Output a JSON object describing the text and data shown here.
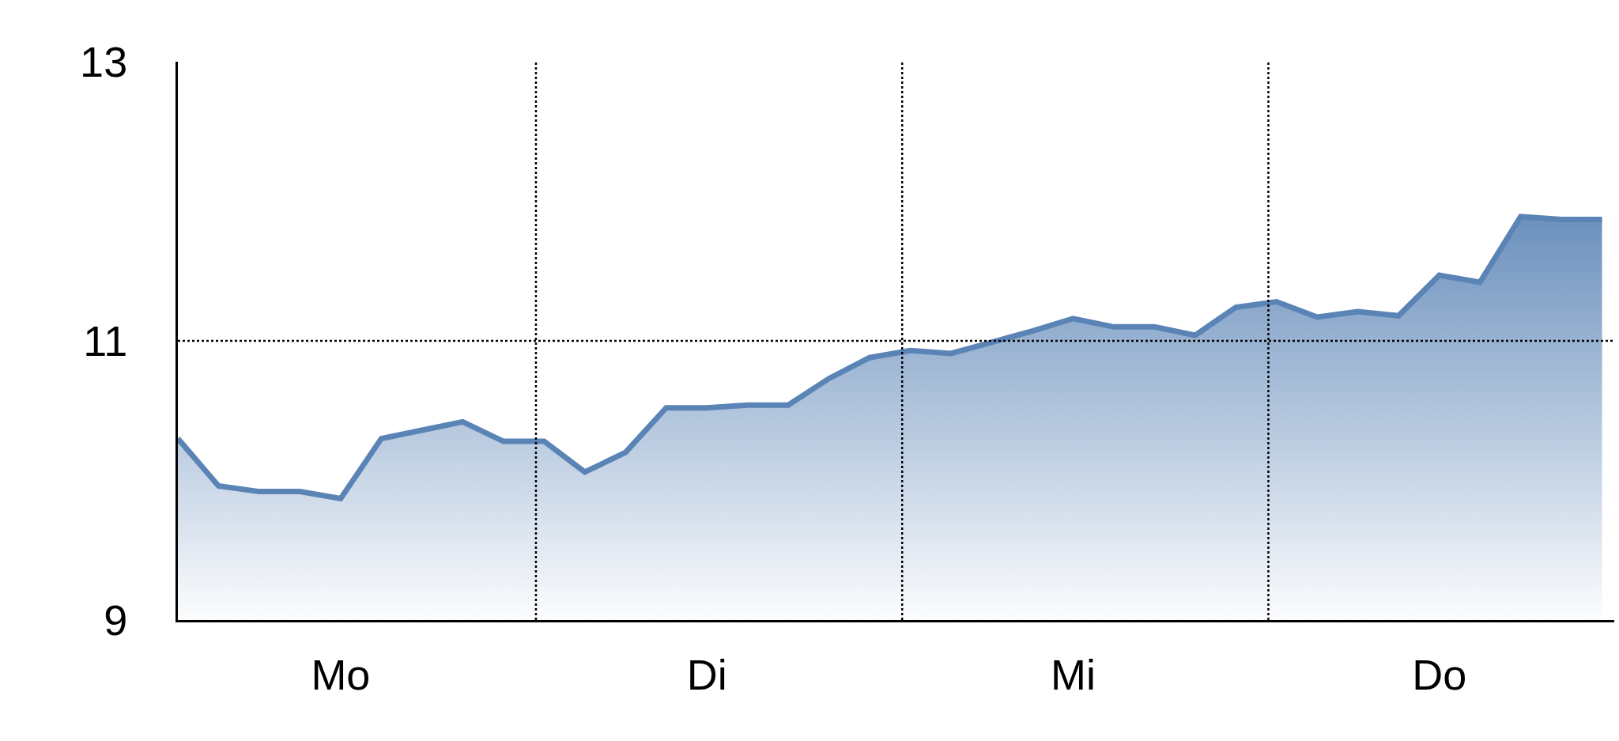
{
  "chart_data": {
    "type": "area",
    "categories": [
      null,
      null,
      null,
      null,
      "Mo",
      null,
      null,
      null,
      null,
      null,
      null,
      null,
      null,
      "Di",
      null,
      null,
      null,
      null,
      null,
      null,
      null,
      null,
      "Mi",
      null,
      null,
      null,
      null,
      null,
      null,
      null,
      null,
      "Do",
      null,
      null,
      null,
      null
    ],
    "series": [
      {
        "color": "#5b84b6",
        "values": [
          10.3,
          9.96,
          9.92,
          9.92,
          9.87,
          10.3,
          10.36,
          10.42,
          10.28,
          10.28,
          10.06,
          10.2,
          10.52,
          10.52,
          10.54,
          10.54,
          10.73,
          10.88,
          10.93,
          10.91,
          10.99,
          11.07,
          11.16,
          11.1,
          11.1,
          11.04,
          11.24,
          11.28,
          11.17,
          11.21,
          11.18,
          11.47,
          11.42,
          11.89,
          11.87,
          11.87
        ]
      }
    ],
    "ylim": [
      9,
      13
    ],
    "yticks": [
      9,
      11,
      13
    ],
    "ref_lines": [
      {
        "axis": "y",
        "value": 11,
        "line_style": "dotted"
      }
    ],
    "grid": "x",
    "marker": "none",
    "line_style": "solid"
  }
}
